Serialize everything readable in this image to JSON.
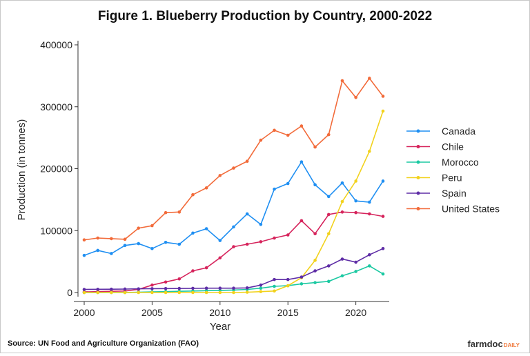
{
  "chart_data": {
    "type": "line",
    "title": "Figure 1. Blueberry Production by Country, 2000-2022",
    "xlabel": "Year",
    "ylabel": "Production (in tonnes)",
    "xlim": [
      2000,
      2022
    ],
    "ylim": [
      0,
      400000
    ],
    "xticks": [
      2000,
      2005,
      2010,
      2015,
      2020
    ],
    "yticks": [
      0,
      100000,
      200000,
      300000,
      400000
    ],
    "grid": false,
    "legend": "right",
    "x": [
      2000,
      2001,
      2002,
      2003,
      2004,
      2005,
      2006,
      2007,
      2008,
      2009,
      2010,
      2011,
      2012,
      2013,
      2014,
      2015,
      2016,
      2017,
      2018,
      2019,
      2020,
      2021,
      2022
    ],
    "series": [
      {
        "name": "Canada",
        "color": "#1f8ff2",
        "values": [
          60000,
          68000,
          63000,
          76000,
          79000,
          71000,
          81000,
          78000,
          96000,
          103000,
          84000,
          106000,
          127000,
          110000,
          167000,
          176000,
          211000,
          174000,
          155000,
          177000,
          148000,
          146000,
          180000
        ]
      },
      {
        "name": "Chile",
        "color": "#d6245c",
        "values": [
          1000,
          1500,
          2000,
          2500,
          5000,
          12000,
          17000,
          22000,
          35000,
          40000,
          56000,
          74000,
          78000,
          82000,
          88000,
          93000,
          116000,
          95000,
          126000,
          130000,
          129000,
          127000,
          123000
        ]
      },
      {
        "name": "Morocco",
        "color": "#1bc9a2",
        "values": [
          0,
          0,
          0,
          0,
          500,
          1000,
          1500,
          2000,
          2500,
          3000,
          3500,
          4000,
          5000,
          7000,
          10000,
          11000,
          14000,
          16000,
          18000,
          27000,
          34000,
          43000,
          30000
        ]
      },
      {
        "name": "Peru",
        "color": "#f2d21d",
        "values": [
          0,
          0,
          0,
          0,
          0,
          0,
          0,
          0,
          0,
          0,
          0,
          0,
          500,
          1500,
          2500,
          11000,
          24000,
          52000,
          95000,
          147000,
          180000,
          228000,
          293000
        ]
      },
      {
        "name": "Spain",
        "color": "#5e2da6",
        "values": [
          5000,
          5200,
          5400,
          5600,
          6000,
          6200,
          6400,
          6600,
          6800,
          7000,
          7000,
          7000,
          7500,
          12000,
          21000,
          21000,
          25000,
          35000,
          43000,
          54000,
          49000,
          61000,
          71000
        ]
      },
      {
        "name": "United States",
        "color": "#f26b3a",
        "values": [
          85000,
          88000,
          87000,
          86000,
          104000,
          108000,
          129000,
          130000,
          158000,
          169000,
          189000,
          201000,
          212000,
          246000,
          262000,
          254000,
          269000,
          235000,
          255000,
          342000,
          315000,
          346000,
          317000
        ]
      }
    ]
  },
  "footer": {
    "source": "Source: UN Food and Agriculture Organization (FAO)",
    "brand_main": "farmdoc",
    "brand_suffix": "DAILY"
  }
}
